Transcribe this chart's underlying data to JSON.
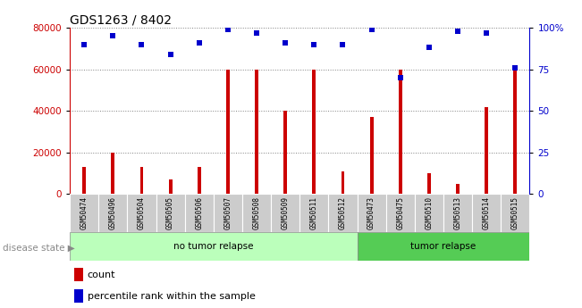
{
  "title": "GDS1263 / 8402",
  "samples": [
    "GSM50474",
    "GSM50496",
    "GSM50504",
    "GSM50505",
    "GSM50506",
    "GSM50507",
    "GSM50508",
    "GSM50509",
    "GSM50511",
    "GSM50512",
    "GSM50473",
    "GSM50475",
    "GSM50510",
    "GSM50513",
    "GSM50514",
    "GSM50515"
  ],
  "counts": [
    13000,
    20000,
    13000,
    7000,
    13000,
    60000,
    60000,
    40000,
    60000,
    11000,
    37000,
    60000,
    10000,
    5000,
    42000,
    61000
  ],
  "percentiles": [
    90,
    95,
    90,
    84,
    91,
    99,
    97,
    91,
    90,
    90,
    99,
    70,
    88,
    98,
    97,
    76
  ],
  "no_tumor_count": 10,
  "tumor_count": 6,
  "bar_color": "#cc0000",
  "dot_color": "#0000cc",
  "no_tumor_bg": "#bbffbb",
  "tumor_bg": "#55cc55",
  "tick_label_bg": "#cccccc",
  "ylim_left": [
    0,
    80000
  ],
  "ylim_right": [
    0,
    100
  ],
  "yticks_left": [
    0,
    20000,
    40000,
    60000,
    80000
  ],
  "yticks_right": [
    0,
    25,
    50,
    75,
    100
  ],
  "legend_count_label": "count",
  "legend_pct_label": "percentile rank within the sample",
  "disease_state_label": "disease state",
  "no_tumor_label": "no tumor relapse",
  "tumor_label": "tumor relapse"
}
